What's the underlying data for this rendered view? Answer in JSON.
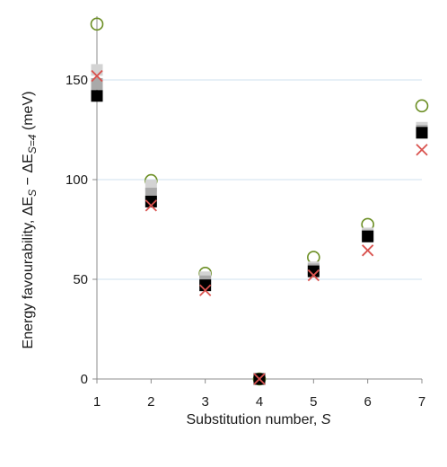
{
  "chart_data": {
    "type": "scatter",
    "xlabel": "Substitution number, S",
    "ylabel": "Energy favourability, ΔE_S − ΔE_S=4 (meV)",
    "x": [
      1,
      2,
      3,
      4,
      5,
      6,
      7
    ],
    "xlim": [
      1,
      7
    ],
    "ylim": [
      0,
      175
    ],
    "yticks": [
      0,
      50,
      100,
      150
    ],
    "xticks": [
      1,
      2,
      3,
      4,
      5,
      6,
      7
    ],
    "grid": "horizontal",
    "series": [
      {
        "marker": "open-circle",
        "color": "#6b8e23",
        "values": [
          178,
          99.5,
          53,
          0,
          61,
          77.5,
          137
        ]
      },
      {
        "marker": "light-gray-square",
        "color": "#d3d3d3",
        "values": [
          155,
          97,
          51,
          0,
          56,
          73,
          126
        ]
      },
      {
        "marker": "mid-gray-square",
        "color": "#a9a9a9",
        "values": [
          148,
          93,
          49,
          0,
          55,
          72,
          124.5
        ]
      },
      {
        "marker": "black-square",
        "color": "#000000",
        "values": [
          142,
          89,
          47,
          0,
          54,
          71.5,
          123.5
        ]
      },
      {
        "marker": "x-cross",
        "color": "#d9534f",
        "values": [
          152,
          87,
          44.5,
          0,
          52,
          64.5,
          115
        ]
      }
    ]
  }
}
